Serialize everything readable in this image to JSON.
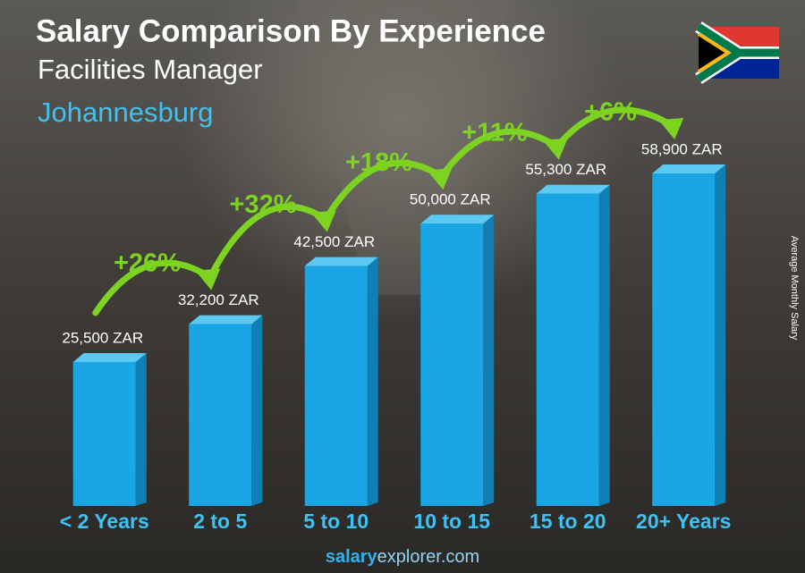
{
  "chart_data": {
    "type": "bar",
    "title": "Salary Comparison By Experience",
    "subtitle": "Facilities Manager",
    "location": "Johannesburg",
    "y_label": "Average Monthly Salary",
    "categories": [
      "< 2 Years",
      "2 to 5",
      "5 to 10",
      "10 to 15",
      "15 to 20",
      "20+ Years"
    ],
    "values": [
      25500,
      32200,
      42500,
      50000,
      55300,
      58900
    ],
    "value_labels": [
      "25,500 ZAR",
      "32,200 ZAR",
      "42,500 ZAR",
      "50,000 ZAR",
      "55,300 ZAR",
      "58,900 ZAR"
    ],
    "changes": [
      {
        "value": 26,
        "label": "+26%"
      },
      {
        "value": 32,
        "label": "+32%"
      },
      {
        "value": 18,
        "label": "+18%"
      },
      {
        "value": 11,
        "label": "+11%"
      },
      {
        "value": 6,
        "label": "+6%"
      }
    ],
    "color": "#1aa6e4",
    "change_color": "#7dd321",
    "footer": {
      "brand": "salary",
      "domain": "explorer.com"
    }
  }
}
